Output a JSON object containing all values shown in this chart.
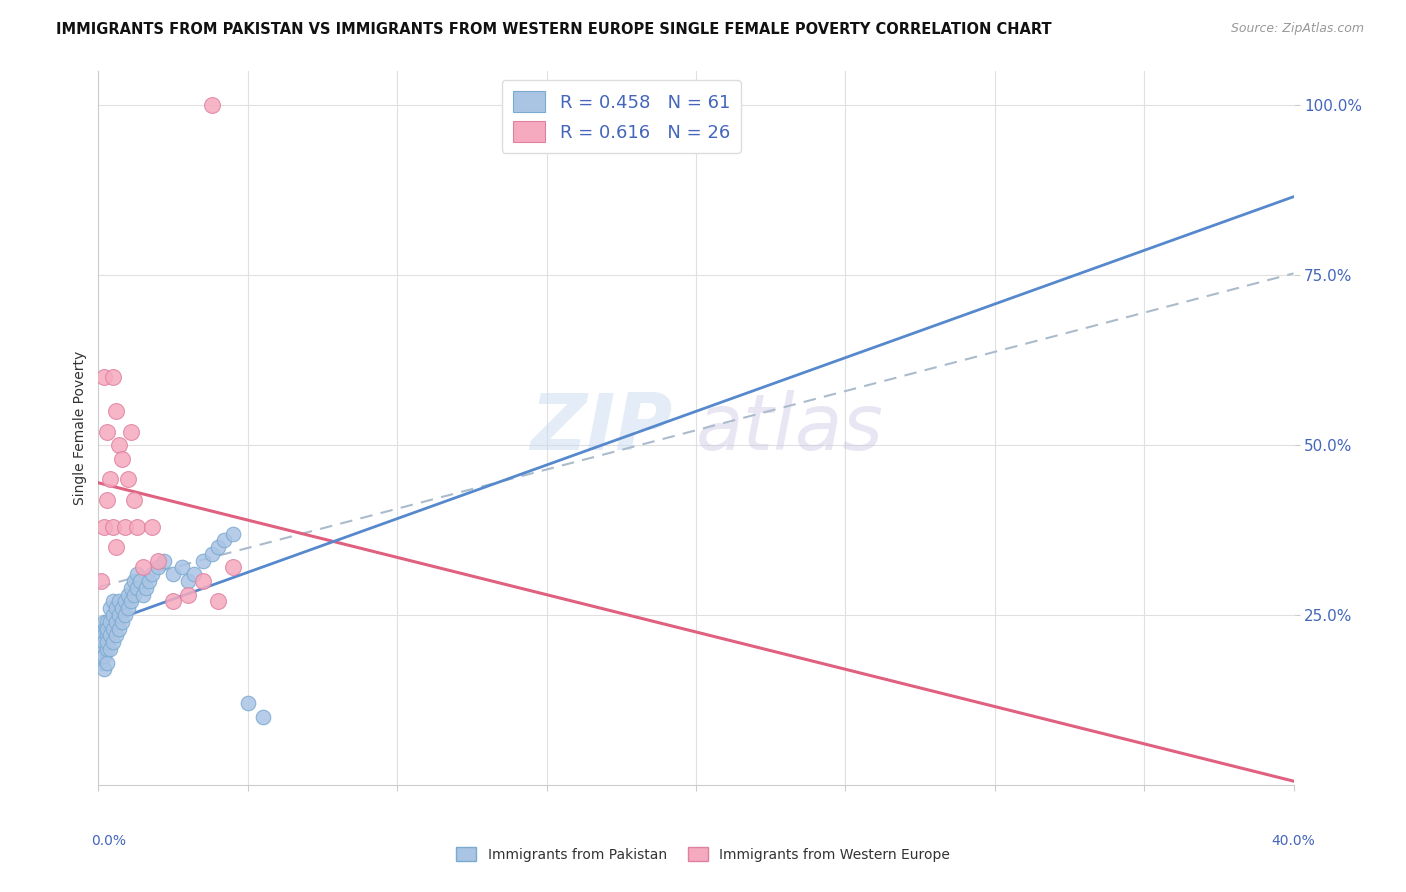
{
  "title": "IMMIGRANTS FROM PAKISTAN VS IMMIGRANTS FROM WESTERN EUROPE SINGLE FEMALE POVERTY CORRELATION CHART",
  "source": "Source: ZipAtlas.com",
  "ylabel": "Single Female Poverty",
  "series1_label": "Immigrants from Pakistan",
  "series2_label": "Immigrants from Western Europe",
  "series1_color": "#aac4e4",
  "series1_edge": "#7aaad0",
  "series2_color": "#f5aabf",
  "series2_edge": "#e080a0",
  "reg1_color": "#5588cc",
  "reg2_color": "#e06080",
  "dashed_color": "#aabbcc",
  "background_color": "#ffffff",
  "watermark_zip": "ZIP",
  "watermark_atlas": "atlas",
  "xmin": 0.0,
  "xmax": 0.4,
  "ymin": 0.0,
  "ymax": 1.05,
  "legend_r1": "R = 0.458",
  "legend_n1": "N = 61",
  "legend_r2": "R = 0.616",
  "legend_n2": "N = 26",
  "tick_color": "#4466bb",
  "title_color": "#111111",
  "source_color": "#999999",
  "ylabel_color": "#333333",
  "grid_color": "#e0e0e0",
  "pakistan_x": [
    0.001,
    0.001,
    0.001,
    0.001,
    0.001,
    0.002,
    0.002,
    0.002,
    0.002,
    0.002,
    0.002,
    0.003,
    0.003,
    0.003,
    0.003,
    0.003,
    0.003,
    0.004,
    0.004,
    0.004,
    0.004,
    0.005,
    0.005,
    0.005,
    0.005,
    0.006,
    0.006,
    0.006,
    0.007,
    0.007,
    0.007,
    0.008,
    0.008,
    0.009,
    0.009,
    0.01,
    0.01,
    0.011,
    0.011,
    0.012,
    0.012,
    0.013,
    0.013,
    0.014,
    0.015,
    0.016,
    0.017,
    0.018,
    0.02,
    0.022,
    0.025,
    0.028,
    0.03,
    0.032,
    0.035,
    0.038,
    0.04,
    0.042,
    0.045,
    0.05,
    0.055
  ],
  "pakistan_y": [
    0.18,
    0.2,
    0.22,
    0.19,
    0.21,
    0.17,
    0.2,
    0.22,
    0.24,
    0.19,
    0.21,
    0.18,
    0.2,
    0.22,
    0.24,
    0.21,
    0.23,
    0.2,
    0.22,
    0.24,
    0.26,
    0.21,
    0.23,
    0.25,
    0.27,
    0.22,
    0.24,
    0.26,
    0.23,
    0.25,
    0.27,
    0.24,
    0.26,
    0.25,
    0.27,
    0.26,
    0.28,
    0.27,
    0.29,
    0.28,
    0.3,
    0.29,
    0.31,
    0.3,
    0.28,
    0.29,
    0.3,
    0.31,
    0.32,
    0.33,
    0.31,
    0.32,
    0.3,
    0.31,
    0.33,
    0.34,
    0.35,
    0.36,
    0.37,
    0.12,
    0.1
  ],
  "western_x": [
    0.001,
    0.002,
    0.002,
    0.003,
    0.003,
    0.004,
    0.005,
    0.005,
    0.006,
    0.006,
    0.007,
    0.008,
    0.009,
    0.01,
    0.011,
    0.012,
    0.013,
    0.015,
    0.018,
    0.02,
    0.025,
    0.03,
    0.035,
    0.04,
    0.045,
    0.038
  ],
  "western_y": [
    0.3,
    0.38,
    0.6,
    0.42,
    0.52,
    0.45,
    0.38,
    0.6,
    0.35,
    0.55,
    0.5,
    0.48,
    0.38,
    0.45,
    0.52,
    0.42,
    0.38,
    0.32,
    0.38,
    0.33,
    0.27,
    0.28,
    0.3,
    0.27,
    0.32,
    1.0
  ]
}
